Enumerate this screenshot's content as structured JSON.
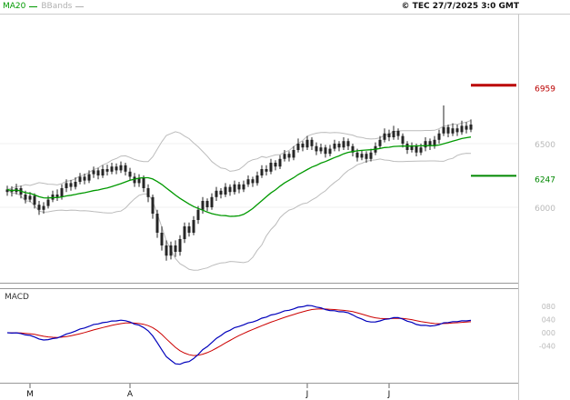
{
  "header": {
    "legend": [
      {
        "label": "MA20",
        "color": "#009900"
      },
      {
        "label": "BBands",
        "color": "#b0b0b0"
      }
    ],
    "copyright": "© TEC 27/7/2025 3:0 GMT"
  },
  "price_panel": {
    "y_ticks": [
      {
        "label": "6500",
        "value": 6500
      },
      {
        "label": "6000",
        "value": 6000
      }
    ],
    "levels": [
      {
        "label": "6959",
        "value": 6959,
        "color": "#bb0000",
        "width": 3
      },
      {
        "label": "6247",
        "value": 6247,
        "color": "#008800",
        "width": 2
      }
    ]
  },
  "macd_panel": {
    "label": "MACD",
    "y_ticks": [
      {
        "label": "080",
        "value": 80
      },
      {
        "label": "040",
        "value": 40
      },
      {
        "label": "000",
        "value": 0
      },
      {
        "label": "-040",
        "value": -40
      }
    ]
  },
  "x_axis": {
    "labels": [
      {
        "label": "M",
        "index": 5
      },
      {
        "label": "A",
        "index": 27
      },
      {
        "label": "J",
        "index": 66
      },
      {
        "label": "J",
        "index": 84
      }
    ]
  },
  "chart_data": {
    "type": "candlestick",
    "title": "",
    "indicators": [
      "MA20",
      "Bollinger(20,2)",
      "MACD(12,26,9)"
    ],
    "levels": {
      "resistance": 6959,
      "support": 6247
    },
    "y_range": [
      5400,
      7100
    ],
    "colors": {
      "candle": "#262626",
      "ma": "#009900",
      "band": "#bcbcbc",
      "macd": "#0000bb",
      "signal": "#cc0000"
    },
    "ohlc": [
      [
        6120,
        6170,
        6090,
        6140
      ],
      [
        6140,
        6165,
        6085,
        6120
      ],
      [
        6120,
        6185,
        6100,
        6150
      ],
      [
        6150,
        6170,
        6070,
        6100
      ],
      [
        6100,
        6130,
        6030,
        6060
      ],
      [
        6060,
        6120,
        6040,
        6090
      ],
      [
        6090,
        6110,
        5990,
        6020
      ],
      [
        6020,
        6050,
        5940,
        5980
      ],
      [
        5980,
        6040,
        5950,
        6010
      ],
      [
        6010,
        6090,
        5990,
        6060
      ],
      [
        6060,
        6130,
        6040,
        6100
      ],
      [
        6100,
        6140,
        6050,
        6080
      ],
      [
        6080,
        6180,
        6060,
        6150
      ],
      [
        6150,
        6220,
        6120,
        6190
      ],
      [
        6190,
        6215,
        6130,
        6160
      ],
      [
        6160,
        6235,
        6140,
        6200
      ],
      [
        6200,
        6270,
        6180,
        6240
      ],
      [
        6240,
        6265,
        6180,
        6210
      ],
      [
        6210,
        6290,
        6190,
        6260
      ],
      [
        6260,
        6320,
        6230,
        6290
      ],
      [
        6290,
        6310,
        6220,
        6250
      ],
      [
        6250,
        6330,
        6230,
        6300
      ],
      [
        6300,
        6335,
        6250,
        6280
      ],
      [
        6280,
        6350,
        6260,
        6320
      ],
      [
        6320,
        6345,
        6260,
        6290
      ],
      [
        6290,
        6360,
        6270,
        6330
      ],
      [
        6330,
        6350,
        6250,
        6280
      ],
      [
        6280,
        6310,
        6210,
        6240
      ],
      [
        6240,
        6270,
        6160,
        6190
      ],
      [
        6190,
        6260,
        6160,
        6230
      ],
      [
        6230,
        6250,
        6120,
        6150
      ],
      [
        6150,
        6180,
        6040,
        6080
      ],
      [
        6080,
        6100,
        5910,
        5950
      ],
      [
        5950,
        5980,
        5760,
        5800
      ],
      [
        5800,
        5850,
        5660,
        5700
      ],
      [
        5700,
        5740,
        5580,
        5620
      ],
      [
        5620,
        5730,
        5590,
        5700
      ],
      [
        5700,
        5740,
        5610,
        5650
      ],
      [
        5650,
        5780,
        5620,
        5750
      ],
      [
        5750,
        5880,
        5720,
        5850
      ],
      [
        5850,
        5880,
        5770,
        5800
      ],
      [
        5800,
        5930,
        5780,
        5900
      ],
      [
        5900,
        6010,
        5870,
        5980
      ],
      [
        5980,
        6080,
        5950,
        6050
      ],
      [
        6050,
        6070,
        5970,
        6000
      ],
      [
        6000,
        6110,
        5980,
        6080
      ],
      [
        6080,
        6160,
        6050,
        6130
      ],
      [
        6130,
        6150,
        6070,
        6100
      ],
      [
        6100,
        6190,
        6080,
        6160
      ],
      [
        6160,
        6180,
        6090,
        6120
      ],
      [
        6120,
        6210,
        6100,
        6180
      ],
      [
        6180,
        6200,
        6110,
        6140
      ],
      [
        6140,
        6210,
        6120,
        6180
      ],
      [
        6180,
        6250,
        6160,
        6220
      ],
      [
        6220,
        6240,
        6160,
        6190
      ],
      [
        6190,
        6280,
        6170,
        6250
      ],
      [
        6250,
        6330,
        6230,
        6300
      ],
      [
        6300,
        6330,
        6250,
        6280
      ],
      [
        6280,
        6380,
        6260,
        6350
      ],
      [
        6350,
        6370,
        6290,
        6320
      ],
      [
        6320,
        6410,
        6300,
        6380
      ],
      [
        6380,
        6450,
        6360,
        6420
      ],
      [
        6420,
        6440,
        6360,
        6390
      ],
      [
        6390,
        6480,
        6370,
        6450
      ],
      [
        6450,
        6540,
        6430,
        6500
      ],
      [
        6500,
        6520,
        6440,
        6470
      ],
      [
        6470,
        6560,
        6450,
        6530
      ],
      [
        6530,
        6550,
        6450,
        6480
      ],
      [
        6480,
        6510,
        6410,
        6440
      ],
      [
        6440,
        6500,
        6420,
        6470
      ],
      [
        6470,
        6490,
        6390,
        6420
      ],
      [
        6420,
        6490,
        6400,
        6460
      ],
      [
        6460,
        6530,
        6440,
        6500
      ],
      [
        6500,
        6520,
        6440,
        6470
      ],
      [
        6470,
        6550,
        6450,
        6520
      ],
      [
        6520,
        6540,
        6450,
        6480
      ],
      [
        6480,
        6500,
        6400,
        6430
      ],
      [
        6430,
        6460,
        6360,
        6390
      ],
      [
        6390,
        6450,
        6370,
        6420
      ],
      [
        6420,
        6440,
        6350,
        6380
      ],
      [
        6380,
        6460,
        6360,
        6430
      ],
      [
        6430,
        6510,
        6410,
        6480
      ],
      [
        6480,
        6560,
        6460,
        6530
      ],
      [
        6530,
        6620,
        6510,
        6580
      ],
      [
        6580,
        6610,
        6520,
        6550
      ],
      [
        6550,
        6640,
        6530,
        6600
      ],
      [
        6600,
        6620,
        6530,
        6560
      ],
      [
        6560,
        6580,
        6470,
        6500
      ],
      [
        6500,
        6520,
        6420,
        6450
      ],
      [
        6450,
        6510,
        6430,
        6480
      ],
      [
        6480,
        6500,
        6400,
        6430
      ],
      [
        6430,
        6500,
        6410,
        6470
      ],
      [
        6470,
        6550,
        6440,
        6520
      ],
      [
        6520,
        6540,
        6450,
        6480
      ],
      [
        6480,
        6560,
        6460,
        6530
      ],
      [
        6530,
        6610,
        6500,
        6580
      ],
      [
        6580,
        6800,
        6560,
        6630
      ],
      [
        6630,
        6650,
        6550,
        6580
      ],
      [
        6580,
        6660,
        6560,
        6620
      ],
      [
        6620,
        6650,
        6560,
        6590
      ],
      [
        6590,
        6680,
        6570,
        6640
      ],
      [
        6640,
        6670,
        6580,
        6610
      ],
      [
        6610,
        6690,
        6590,
        6650
      ]
    ]
  }
}
